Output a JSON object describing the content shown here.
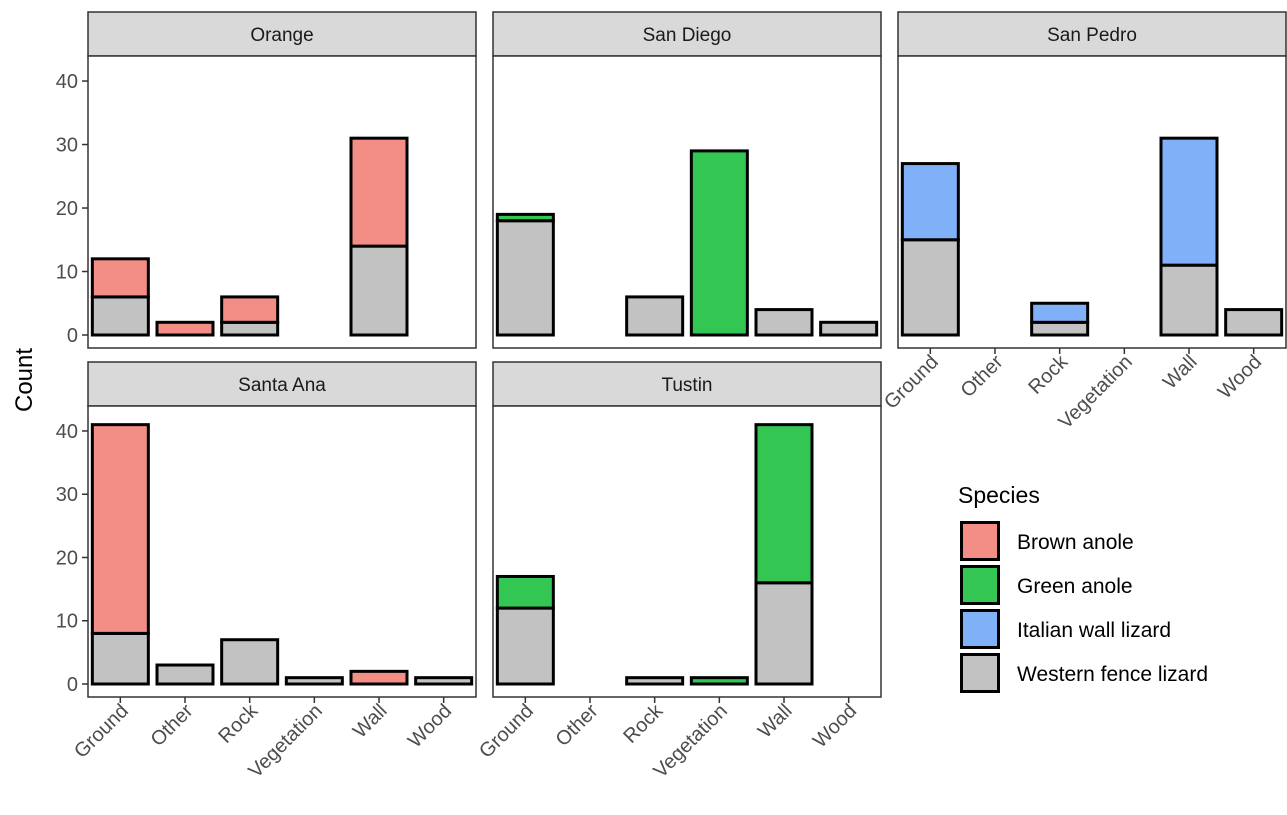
{
  "chart_data": {
    "type": "bar",
    "stacked": true,
    "faceted": true,
    "ylabel": "Count",
    "ylim": [
      0,
      43
    ],
    "yticks": [
      0,
      10,
      20,
      30,
      40
    ],
    "categories": [
      "Ground",
      "Other",
      "Rock",
      "Vegetation",
      "Wall",
      "Wood"
    ],
    "legend": {
      "title": "Species",
      "entries": [
        "Brown anole",
        "Green anole",
        "Italian wall lizard",
        "Western fence lizard"
      ]
    },
    "colors": {
      "Brown anole": "#F28E86",
      "Green anole": "#33C653",
      "Italian wall lizard": "#80B0F8",
      "Western fence lizard": "#C2C2C2"
    },
    "grid": false,
    "facets": [
      {
        "title": "Orange",
        "series": [
          {
            "name": "Western fence lizard",
            "values": [
              6,
              0,
              2,
              0,
              14,
              0
            ]
          },
          {
            "name": "Brown anole",
            "values": [
              6,
              2,
              4,
              0,
              17,
              0
            ]
          }
        ]
      },
      {
        "title": "San Diego",
        "series": [
          {
            "name": "Western fence lizard",
            "values": [
              18,
              0,
              6,
              0,
              4,
              2
            ]
          },
          {
            "name": "Green anole",
            "values": [
              1,
              0,
              0,
              29,
              0,
              0
            ]
          }
        ]
      },
      {
        "title": "San Pedro",
        "series": [
          {
            "name": "Western fence lizard",
            "values": [
              15,
              0,
              2,
              0,
              11,
              4
            ]
          },
          {
            "name": "Italian wall lizard",
            "values": [
              12,
              0,
              3,
              0,
              20,
              0
            ]
          }
        ]
      },
      {
        "title": "Santa Ana",
        "series": [
          {
            "name": "Western fence lizard",
            "values": [
              8,
              3,
              7,
              1,
              0,
              1
            ]
          },
          {
            "name": "Brown anole",
            "values": [
              33,
              0,
              0,
              0,
              2,
              0
            ]
          }
        ]
      },
      {
        "title": "Tustin",
        "series": [
          {
            "name": "Western fence lizard",
            "values": [
              12,
              0,
              1,
              0,
              16,
              0
            ]
          },
          {
            "name": "Green anole",
            "values": [
              5,
              0,
              0,
              1,
              25,
              0
            ]
          }
        ]
      }
    ]
  }
}
